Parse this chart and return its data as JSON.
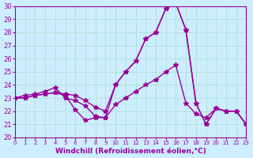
{
  "title": "",
  "xlabel": "Windchill (Refroidissement éolien,°C)",
  "ylabel": "",
  "xlim": [
    0,
    23
  ],
  "ylim": [
    20,
    30
  ],
  "yticks": [
    20,
    21,
    22,
    23,
    24,
    25,
    26,
    27,
    28,
    29,
    30
  ],
  "xticks": [
    0,
    1,
    2,
    3,
    4,
    5,
    6,
    7,
    8,
    9,
    10,
    11,
    12,
    13,
    14,
    15,
    16,
    17,
    18,
    19,
    20,
    21,
    22,
    23
  ],
  "background_color": "#cceeff",
  "grid_color": "#aaddcc",
  "line_color": "#990099",
  "series": [
    [
      23.0,
      23.0,
      23.2,
      23.3,
      23.4,
      23.2,
      22.1,
      21.3,
      21.5,
      21.5,
      24.0,
      25.0,
      25.8,
      27.5,
      28.0,
      29.8,
      30.2,
      28.2,
      22.6,
      21.0,
      22.2,
      22.0,
      22.0,
      21.0
    ],
    [
      23.0,
      23.0,
      23.2,
      23.3,
      23.4,
      23.3,
      23.2,
      22.8,
      22.3,
      22.0,
      24.0,
      25.0,
      25.8,
      27.5,
      28.0,
      29.8,
      30.2,
      28.2,
      22.6,
      21.0,
      22.2,
      22.0,
      22.0,
      21.0
    ],
    [
      23.0,
      23.2,
      23.3,
      23.5,
      23.8,
      23.0,
      22.8,
      22.4,
      21.6,
      21.5,
      22.5,
      23.0,
      23.5,
      24.0,
      24.4,
      25.0,
      25.5,
      22.6,
      21.8,
      21.5,
      22.2,
      22.0,
      22.0,
      21.0
    ]
  ]
}
